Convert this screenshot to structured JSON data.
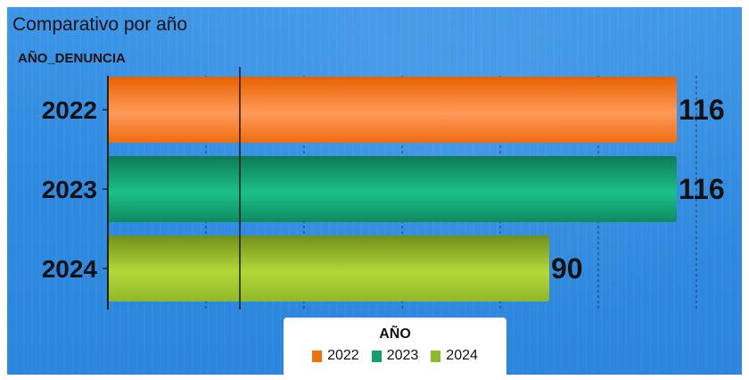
{
  "chart_data": {
    "type": "bar",
    "orientation": "horizontal",
    "title": "Comparativo por año",
    "ylabel": "AÑO_DENUNCIA",
    "xlabel": "",
    "categories": [
      "2022",
      "2023",
      "2024"
    ],
    "values": [
      116,
      116,
      90
    ],
    "xlim": [
      0,
      120
    ],
    "grid": true,
    "colors": [
      "#f07010",
      "#12a070",
      "#8fb82a"
    ],
    "legend": {
      "title": "AÑO",
      "placement": "bottom-center",
      "entries": [
        "2022",
        "2023",
        "2024"
      ]
    }
  }
}
